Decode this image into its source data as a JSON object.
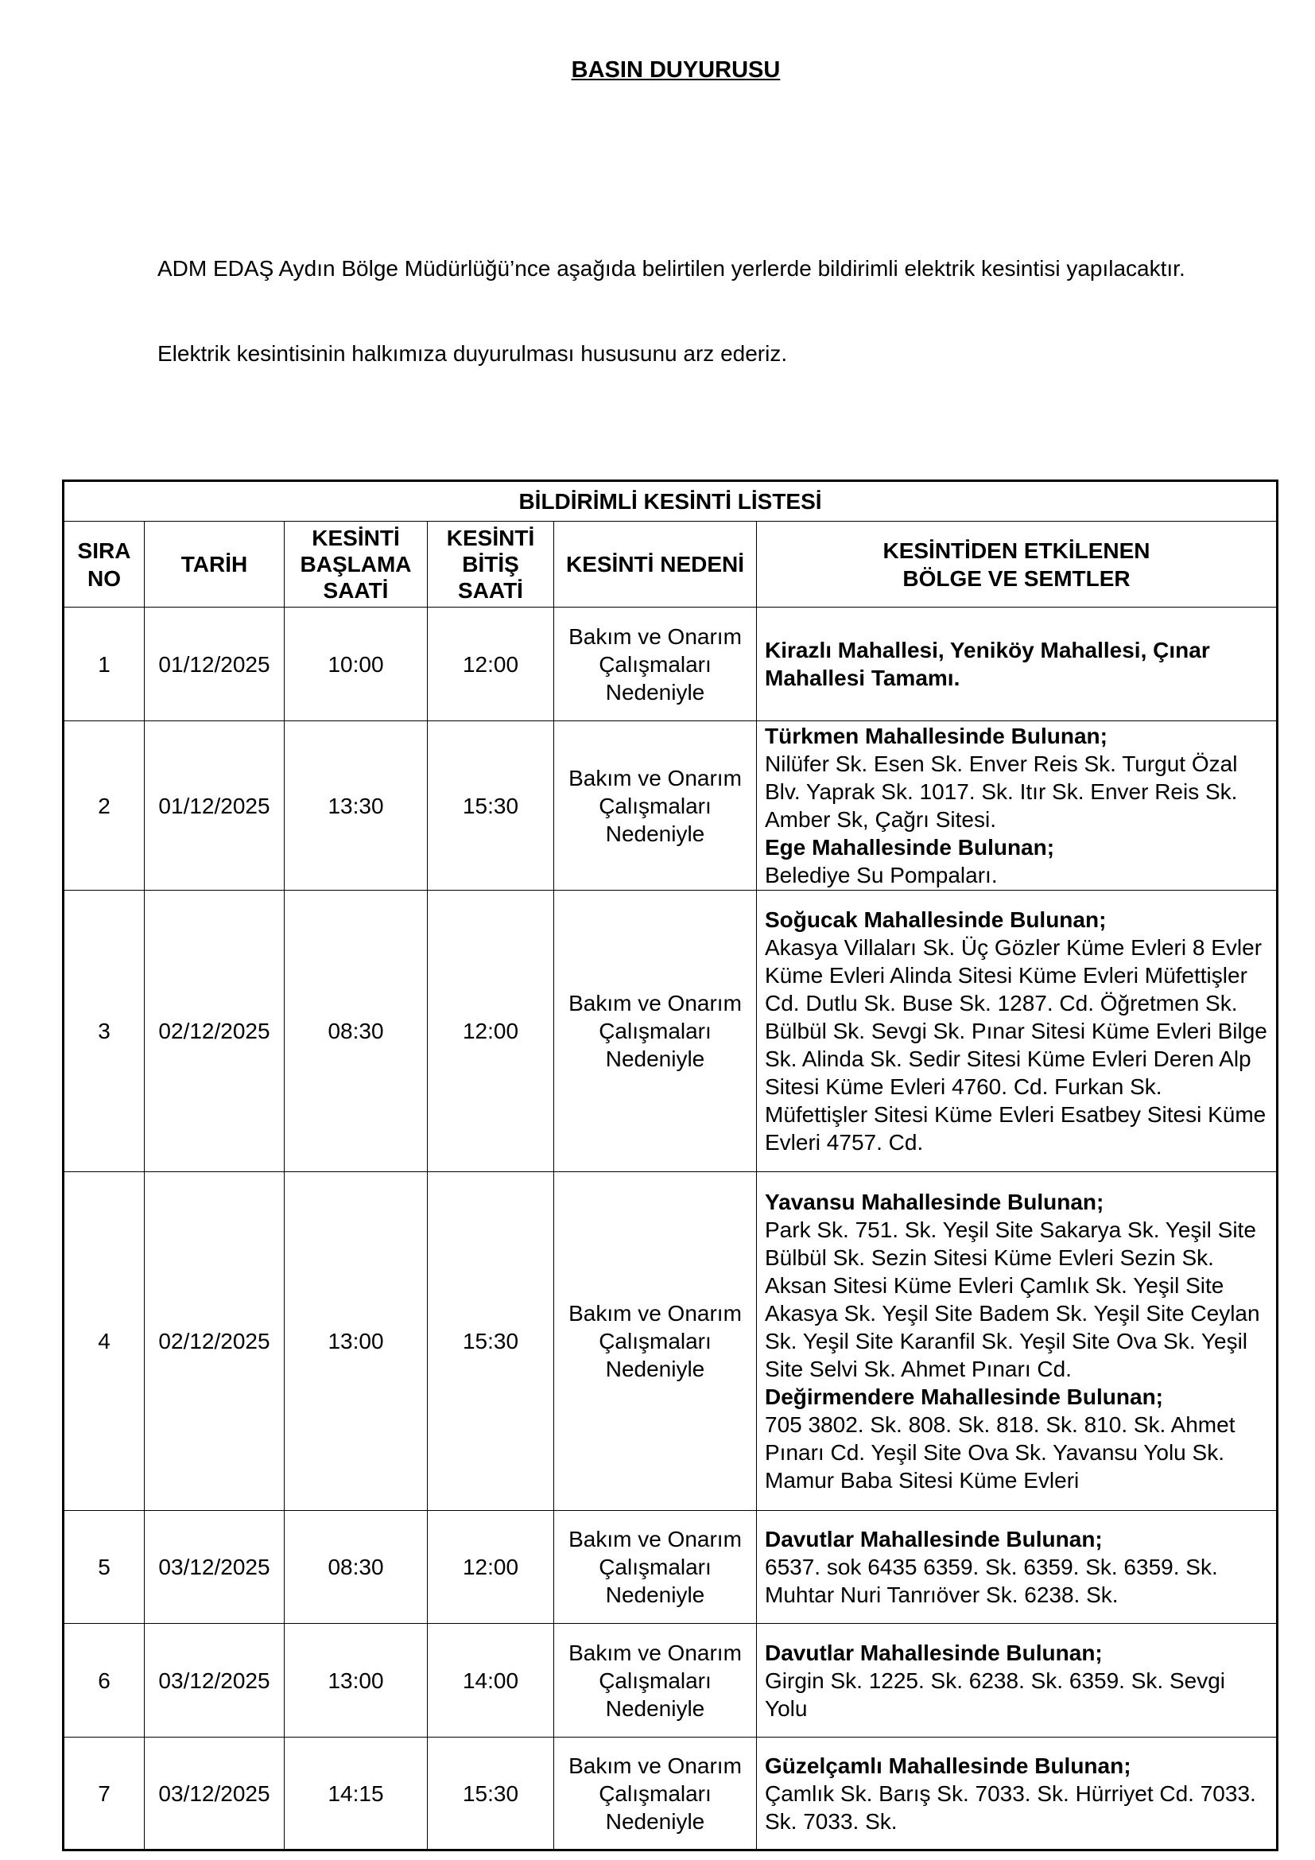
{
  "title": "BASIN DUYURUSU",
  "intro": "ADM EDAŞ Aydın Bölge Müdürlüğü’nce aşağıda belirtilen yerlerde bildirimli elektrik kesintisi yapılacaktır.",
  "closing": "Elektrik kesintisinin halkımıza duyurulması hususunu arz ederiz.",
  "table": {
    "caption": "BİLDİRİMLİ KESİNTİ LİSTESİ",
    "headers": [
      "SIRA NO",
      "TARİH",
      "KESİNTİ BAŞLAMA SAATİ",
      "KESİNTİ BİTİŞ SAATİ",
      "KESİNTİ NEDENİ",
      "KESİNTİDEN ETKİLENEN BÖLGE VE SEMTLER"
    ],
    "rows": [
      {
        "no": "1",
        "date": "01/12/2025",
        "start": "10:00",
        "end": "12:00",
        "reason": "Bakım ve Onarım Çalışmaları Nedeniyle",
        "regions": [
          {
            "text": "Kirazlı Mahallesi, Yeniköy Mahallesi, Çınar Mahallesi Tamamı.",
            "bold": true
          }
        ]
      },
      {
        "no": "2",
        "date": "01/12/2025",
        "start": "13:30",
        "end": "15:30",
        "reason": "Bakım ve Onarım Çalışmaları Nedeniyle",
        "regions": [
          {
            "text": "Türkmen Mahallesinde Bulunan;",
            "bold": true
          },
          {
            "text": "Nilüfer Sk. Esen Sk. Enver Reis Sk. Turgut Özal Blv. Yaprak Sk. 1017. Sk. Itır Sk. Enver Reis Sk. Amber Sk, Çağrı Sitesi.",
            "bold": false
          },
          {
            "text": "Ege Mahallesinde Bulunan;",
            "bold": true
          },
          {
            "text": "Belediye Su Pompaları.",
            "bold": false
          }
        ]
      },
      {
        "no": "3",
        "date": "02/12/2025",
        "start": "08:30",
        "end": "12:00",
        "reason": "Bakım ve Onarım Çalışmaları Nedeniyle",
        "regions": [
          {
            "text": "Soğucak Mahallesinde Bulunan;",
            "bold": true
          },
          {
            "text": "Akasya Villaları Sk. Üç Gözler Küme Evleri 8 Evler Küme Evleri Alinda Sitesi Küme Evleri Müfettişler Cd. Dutlu Sk. Buse Sk. 1287. Cd. Öğretmen Sk. Bülbül Sk. Sevgi Sk. Pınar Sitesi Küme Evleri Bilge Sk. Alinda Sk. Sedir Sitesi Küme Evleri Deren Alp Sitesi Küme Evleri 4760. Cd. Furkan Sk. Müfettişler Sitesi Küme Evleri Esatbey Sitesi Küme Evleri 4757. Cd.",
            "bold": false
          }
        ]
      },
      {
        "no": "4",
        "date": "02/12/2025",
        "start": "13:00",
        "end": "15:30",
        "reason": "Bakım ve Onarım Çalışmaları Nedeniyle",
        "regions": [
          {
            "text": "Yavansu Mahallesinde Bulunan;",
            "bold": true
          },
          {
            "text": "Park Sk. 751. Sk. Yeşil Site Sakarya Sk. Yeşil Site Bülbül Sk. Sezin Sitesi Küme Evleri Sezin Sk. Aksan Sitesi Küme Evleri Çamlık Sk. Yeşil Site Akasya Sk. Yeşil Site Badem Sk. Yeşil Site Ceylan Sk. Yeşil Site Karanfil Sk. Yeşil Site Ova Sk. Yeşil Site Selvi Sk. Ahmet Pınarı Cd.",
            "bold": false
          },
          {
            "text": "Değirmendere Mahallesinde Bulunan;",
            "bold": true
          },
          {
            "text": "705 3802. Sk. 808. Sk. 818. Sk. 810. Sk. Ahmet Pınarı Cd. Yeşil Site Ova Sk. Yavansu Yolu Sk. Mamur Baba Sitesi Küme Evleri",
            "bold": false
          }
        ]
      },
      {
        "no": "5",
        "date": "03/12/2025",
        "start": "08:30",
        "end": "12:00",
        "reason": "Bakım ve Onarım Çalışmaları Nedeniyle",
        "regions": [
          {
            "text": "Davutlar Mahallesinde Bulunan;",
            "bold": true
          },
          {
            "text": "6537. sok 6435 6359. Sk. 6359. Sk. 6359. Sk. Muhtar Nuri Tanrıöver Sk. 6238. Sk.",
            "bold": false
          }
        ]
      },
      {
        "no": "6",
        "date": "03/12/2025",
        "start": "13:00",
        "end": "14:00",
        "reason": "Bakım ve Onarım Çalışmaları Nedeniyle",
        "regions": [
          {
            "text": "Davutlar Mahallesinde Bulunan;",
            "bold": true
          },
          {
            "text": "Girgin Sk. 1225. Sk. 6238. Sk. 6359. Sk. Sevgi Yolu",
            "bold": false
          }
        ]
      },
      {
        "no": "7",
        "date": "03/12/2025",
        "start": "14:15",
        "end": "15:30",
        "reason": "Bakım ve Onarım Çalışmaları Nedeniyle",
        "regions": [
          {
            "text": "Güzelçamlı Mahallesinde Bulunan;",
            "bold": true
          },
          {
            "text": "Çamlık Sk. Barış Sk. 7033. Sk. Hürriyet Cd. 7033. Sk. 7033. Sk.",
            "bold": false
          }
        ]
      }
    ]
  }
}
